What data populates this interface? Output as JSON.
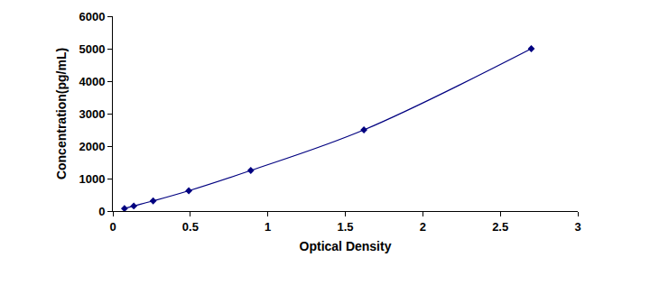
{
  "chart_data": {
    "type": "line",
    "x_label": "Optical Density",
    "y_label": "Concentration(pg/mL)",
    "x": [
      0.075,
      0.135,
      0.26,
      0.49,
      0.89,
      1.62,
      2.7
    ],
    "values": [
      78,
      156,
      312,
      625,
      1250,
      2500,
      5000
    ],
    "color": "#000080",
    "marker": "diamond",
    "line_style": "solid",
    "xlim": [
      0,
      3
    ],
    "xticks": [
      0,
      0.5,
      1,
      1.5,
      2,
      2.5,
      3
    ],
    "ylim": [
      0,
      6000
    ],
    "yticks": [
      0,
      1000,
      2000,
      3000,
      4000,
      5000,
      6000
    ],
    "grid": false
  }
}
